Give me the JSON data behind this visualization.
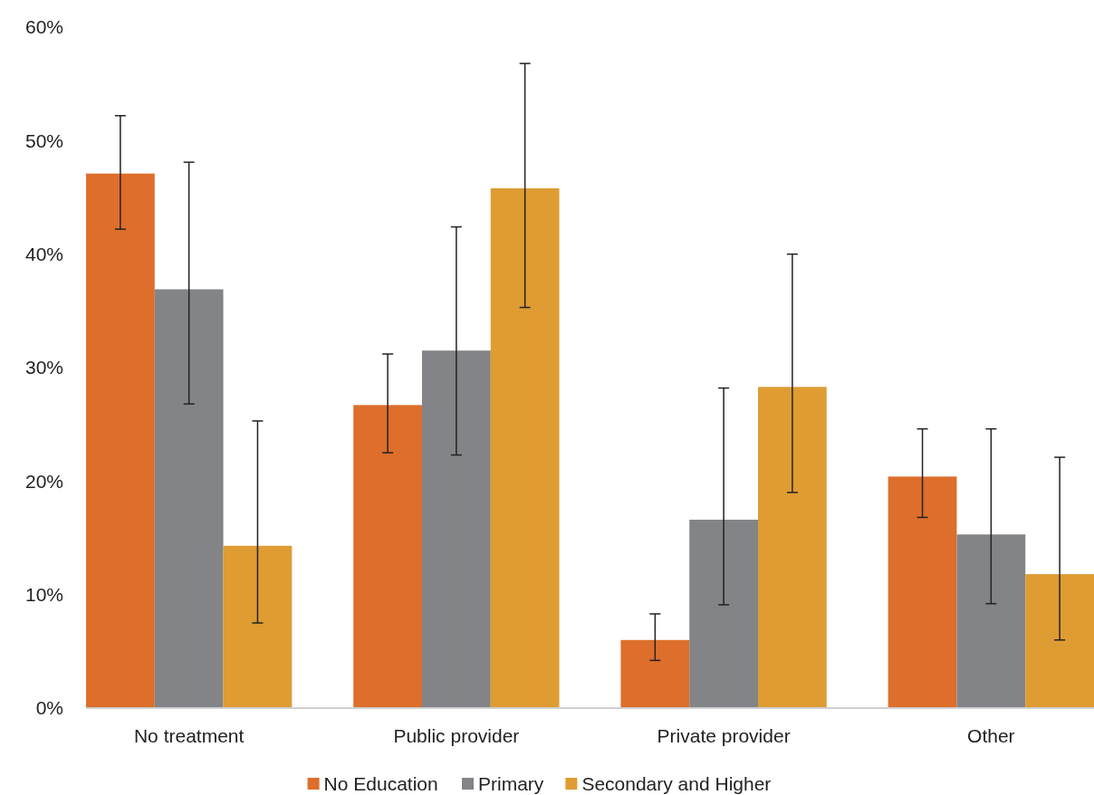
{
  "chart_data": {
    "type": "bar",
    "categories": [
      "No treatment",
      "Public provider",
      "Private provider",
      "Other"
    ],
    "series": [
      {
        "name": "No Education",
        "color": "#dd6e2b",
        "values": [
          47.1,
          26.7,
          6.0,
          20.4
        ],
        "errors": [
          [
            42.2,
            52.2
          ],
          [
            22.5,
            31.2
          ],
          [
            4.2,
            8.3
          ],
          [
            16.8,
            24.6
          ]
        ]
      },
      {
        "name": "Primary",
        "color": "#838487",
        "values": [
          36.9,
          31.5,
          16.6,
          15.3
        ],
        "errors": [
          [
            26.8,
            48.1
          ],
          [
            22.3,
            42.4
          ],
          [
            9.1,
            28.2
          ],
          [
            9.2,
            24.6
          ]
        ]
      },
      {
        "name": "Secondary and Higher",
        "color": "#de9c32",
        "values": [
          14.3,
          45.8,
          28.3,
          11.8
        ],
        "errors": [
          [
            7.5,
            25.3
          ],
          [
            35.3,
            56.8
          ],
          [
            19.0,
            40.0
          ],
          [
            6.0,
            22.1
          ]
        ]
      }
    ],
    "ylim": [
      0,
      60
    ],
    "yticks": [
      {
        "value": 0,
        "label": "0%"
      },
      {
        "value": 10,
        "label": "10%"
      },
      {
        "value": 20,
        "label": "20%"
      },
      {
        "value": 30,
        "label": "30%"
      },
      {
        "value": 40,
        "label": "40%"
      },
      {
        "value": 50,
        "label": "50%"
      },
      {
        "value": 60,
        "label": "60%"
      }
    ],
    "legend": "bottom"
  }
}
